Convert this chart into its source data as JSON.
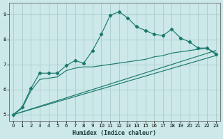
{
  "title": "",
  "xlabel": "Humidex (Indice chaleur)",
  "bg_color": "#cce8e8",
  "grid_color": "#aacccc",
  "line_color": "#1a7a6e",
  "xlim": [
    -0.5,
    23.5
  ],
  "ylim": [
    4.75,
    9.45
  ],
  "xticks": [
    0,
    1,
    2,
    3,
    4,
    5,
    6,
    7,
    8,
    9,
    10,
    11,
    12,
    13,
    14,
    15,
    16,
    17,
    18,
    19,
    20,
    21,
    22,
    23
  ],
  "yticks": [
    5,
    6,
    7,
    8,
    9
  ],
  "line1_x": [
    0,
    1,
    2,
    3,
    4,
    5,
    6,
    7,
    8,
    9,
    10,
    11,
    12,
    13,
    14,
    15,
    16,
    17,
    18,
    19,
    20,
    21,
    22,
    23
  ],
  "line1_y": [
    5.0,
    5.3,
    6.05,
    6.65,
    6.65,
    6.65,
    6.95,
    7.15,
    7.05,
    7.55,
    8.2,
    8.95,
    9.1,
    8.85,
    8.5,
    8.35,
    8.2,
    8.15,
    8.4,
    8.05,
    7.9,
    7.65,
    7.65,
    7.4
  ],
  "line2_x": [
    0,
    1,
    2,
    3,
    4,
    5,
    6,
    7,
    8,
    9,
    10,
    11,
    12,
    13,
    14,
    15,
    16,
    17,
    18,
    19,
    20,
    21,
    22,
    23
  ],
  "line2_y": [
    5.0,
    5.25,
    5.95,
    6.4,
    6.45,
    6.5,
    6.75,
    6.85,
    6.9,
    6.9,
    6.95,
    7.0,
    7.05,
    7.1,
    7.15,
    7.2,
    7.3,
    7.35,
    7.45,
    7.5,
    7.55,
    7.6,
    7.65,
    7.45
  ],
  "line3_x": [
    0,
    23
  ],
  "line3_y": [
    5.0,
    7.55
  ],
  "line4_x": [
    0,
    23
  ],
  "line4_y": [
    5.0,
    7.35
  ]
}
